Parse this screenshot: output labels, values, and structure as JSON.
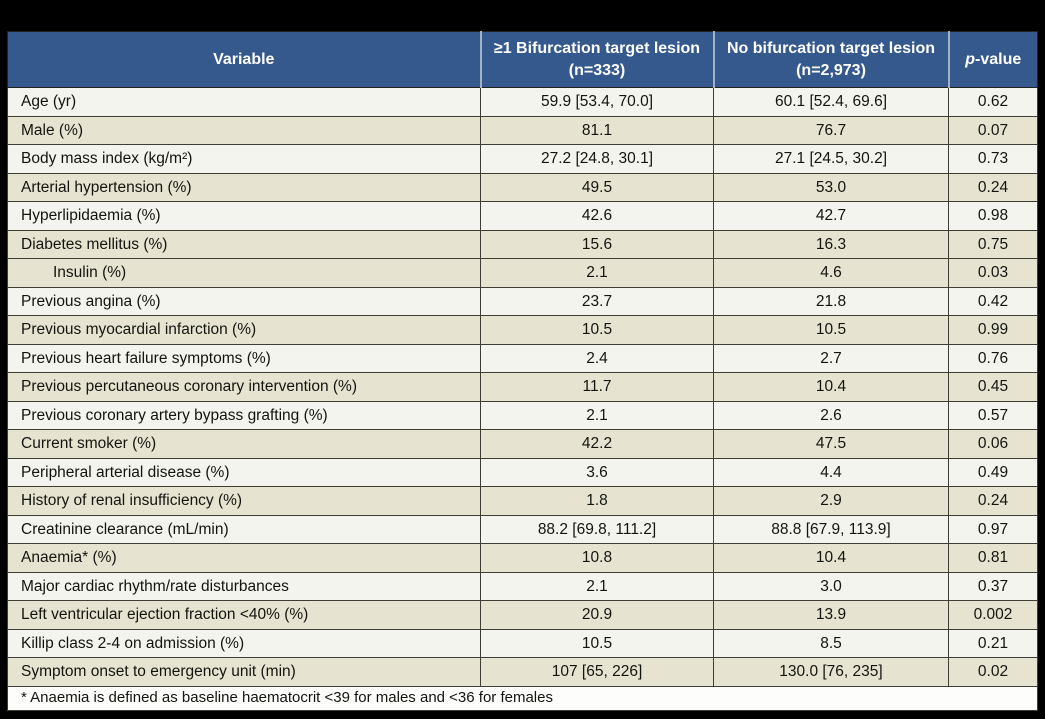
{
  "table": {
    "header": {
      "variable": "Variable",
      "bifurcation": "≥1 Bifurcation target lesion\n(n=333)",
      "no_bifurcation": "No bifurcation target lesion\n(n=2,973)",
      "p_italic": "p",
      "p_rest": "-value"
    },
    "colors": {
      "header_bg": "#35598d",
      "header_text": "#ffffff",
      "row_light": "#f4f4ee",
      "row_shaded": "#e6e4d1",
      "footnote_bg": "#fdfdfb",
      "frame": "#000000"
    },
    "rows": [
      {
        "variable": "Age (yr)",
        "bifurcation": "59.9 [53.4, 70.0]",
        "no_bifurcation": "60.1 [52.4, 69.6]",
        "p": "0.62",
        "indent": false,
        "shaded": false
      },
      {
        "variable": "Male (%)",
        "bifurcation": "81.1",
        "no_bifurcation": "76.7",
        "p": "0.07",
        "indent": false,
        "shaded": true
      },
      {
        "variable": "Body mass index (kg/m²)",
        "bifurcation": "27.2 [24.8, 30.1]",
        "no_bifurcation": "27.1 [24.5, 30.2]",
        "p": "0.73",
        "indent": false,
        "shaded": false
      },
      {
        "variable": "Arterial hypertension (%)",
        "bifurcation": "49.5",
        "no_bifurcation": "53.0",
        "p": "0.24",
        "indent": false,
        "shaded": true
      },
      {
        "variable": "Hyperlipidaemia (%)",
        "bifurcation": "42.6",
        "no_bifurcation": "42.7",
        "p": "0.98",
        "indent": false,
        "shaded": false
      },
      {
        "variable": "Diabetes mellitus (%)",
        "bifurcation": "15.6",
        "no_bifurcation": "16.3",
        "p": "0.75",
        "indent": false,
        "shaded": true
      },
      {
        "variable": "Insulin (%)",
        "bifurcation": "2.1",
        "no_bifurcation": "4.6",
        "p": "0.03",
        "indent": true,
        "shaded": true
      },
      {
        "variable": "Previous angina (%)",
        "bifurcation": "23.7",
        "no_bifurcation": "21.8",
        "p": "0.42",
        "indent": false,
        "shaded": false
      },
      {
        "variable": "Previous myocardial infarction (%)",
        "bifurcation": "10.5",
        "no_bifurcation": "10.5",
        "p": "0.99",
        "indent": false,
        "shaded": true
      },
      {
        "variable": "Previous heart failure symptoms (%)",
        "bifurcation": "2.4",
        "no_bifurcation": "2.7",
        "p": "0.76",
        "indent": false,
        "shaded": false
      },
      {
        "variable": "Previous percutaneous coronary intervention (%)",
        "bifurcation": "11.7",
        "no_bifurcation": "10.4",
        "p": "0.45",
        "indent": false,
        "shaded": true
      },
      {
        "variable": "Previous coronary artery bypass grafting (%)",
        "bifurcation": "2.1",
        "no_bifurcation": "2.6",
        "p": "0.57",
        "indent": false,
        "shaded": false
      },
      {
        "variable": "Current smoker (%)",
        "bifurcation": "42.2",
        "no_bifurcation": "47.5",
        "p": "0.06",
        "indent": false,
        "shaded": true
      },
      {
        "variable": "Peripheral arterial disease (%)",
        "bifurcation": "3.6",
        "no_bifurcation": "4.4",
        "p": "0.49",
        "indent": false,
        "shaded": false
      },
      {
        "variable": "History of renal insufficiency (%)",
        "bifurcation": "1.8",
        "no_bifurcation": "2.9",
        "p": "0.24",
        "indent": false,
        "shaded": true
      },
      {
        "variable": "Creatinine clearance (mL/min)",
        "bifurcation": "88.2 [69.8, 111.2]",
        "no_bifurcation": "88.8 [67.9, 113.9]",
        "p": "0.97",
        "indent": false,
        "shaded": false
      },
      {
        "variable": "Anaemia* (%)",
        "bifurcation": "10.8",
        "no_bifurcation": "10.4",
        "p": "0.81",
        "indent": false,
        "shaded": true
      },
      {
        "variable": "Major cardiac rhythm/rate disturbances",
        "bifurcation": "2.1",
        "no_bifurcation": "3.0",
        "p": "0.37",
        "indent": false,
        "shaded": false
      },
      {
        "variable": "Left ventricular ejection fraction <40% (%)",
        "bifurcation": "20.9",
        "no_bifurcation": "13.9",
        "p": "0.002",
        "indent": false,
        "shaded": true
      },
      {
        "variable": "Killip class 2-4 on admission (%)",
        "bifurcation": "10.5",
        "no_bifurcation": "8.5",
        "p": "0.21",
        "indent": false,
        "shaded": false
      },
      {
        "variable": "Symptom onset to emergency unit (min)",
        "bifurcation": "107 [65, 226]",
        "no_bifurcation": "130.0 [76, 235]",
        "p": "0.02",
        "indent": false,
        "shaded": true
      }
    ],
    "footnote": "* Anaemia is defined as baseline haematocrit <39 for males and <36 for females"
  }
}
